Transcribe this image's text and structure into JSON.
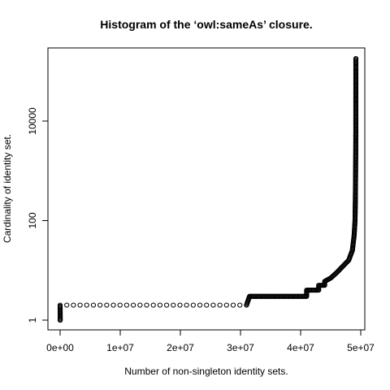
{
  "chart_data": {
    "type": "scatter",
    "title": "Histogram of the ‘owl:sameAs’ closure.",
    "xlabel": "Number of non-singleton identity sets.",
    "ylabel": "Cardinality of identity set.",
    "x_scale": "linear",
    "y_scale": "log",
    "xlim": [
      -2000000,
      51000000
    ],
    "ylim": [
      0.6,
      300000
    ],
    "x_ticks": [
      0,
      10000000,
      20000000,
      30000000,
      40000000,
      50000000
    ],
    "x_tick_labels": [
      "0e+00",
      "1e+07",
      "2e+07",
      "3e+07",
      "4e+07",
      "5e+07"
    ],
    "y_ticks": [
      1,
      100,
      10000
    ],
    "y_tick_labels": [
      "1",
      "100",
      "10000"
    ],
    "grid": false,
    "legend": "none",
    "marker": "open-circle",
    "color": "#000000",
    "points": [
      {
        "x": 0,
        "y": 1
      },
      {
        "x": 20000,
        "y": 1
      },
      {
        "x": 0,
        "y": 2
      },
      {
        "x": 31000000,
        "y": 2
      },
      {
        "x": 31500000,
        "y": 3
      },
      {
        "x": 41000000,
        "y": 3
      },
      {
        "x": 41000000,
        "y": 4
      },
      {
        "x": 43000000,
        "y": 4
      },
      {
        "x": 43000000,
        "y": 5
      },
      {
        "x": 44000000,
        "y": 5
      },
      {
        "x": 44000000,
        "y": 6
      },
      {
        "x": 45000000,
        "y": 7
      },
      {
        "x": 46000000,
        "y": 9
      },
      {
        "x": 47000000,
        "y": 12
      },
      {
        "x": 48000000,
        "y": 16
      },
      {
        "x": 48600000,
        "y": 25
      },
      {
        "x": 48900000,
        "y": 50
      },
      {
        "x": 49050000,
        "y": 100
      },
      {
        "x": 49100000,
        "y": 250
      },
      {
        "x": 49130000,
        "y": 600
      },
      {
        "x": 49150000,
        "y": 1200
      },
      {
        "x": 49160000,
        "y": 1800
      },
      {
        "x": 49170000,
        "y": 2500
      },
      {
        "x": 49175000,
        "y": 3500
      },
      {
        "x": 49180000,
        "y": 5000
      },
      {
        "x": 49182000,
        "y": 5000
      },
      {
        "x": 49185000,
        "y": 22000
      },
      {
        "x": 49188000,
        "y": 180000
      }
    ]
  }
}
